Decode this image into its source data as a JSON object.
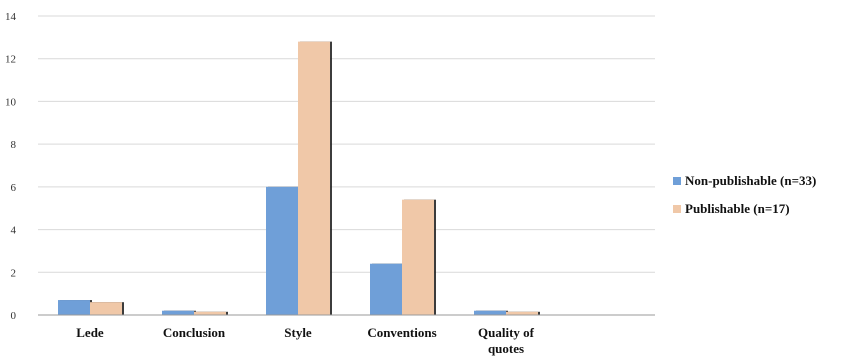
{
  "chart_data": {
    "type": "bar",
    "categories": [
      "Lede",
      "Conclusion",
      "Style",
      "Conventions",
      "Quality of quotes"
    ],
    "series": [
      {
        "name": "Non-publishable (n=33)",
        "color": "#6f9fd8",
        "values": [
          0.7,
          0.2,
          6.0,
          2.4,
          0.2
        ]
      },
      {
        "name": "Publishable (n=17)",
        "color": "#f0c8a8",
        "values": [
          0.6,
          0.15,
          12.8,
          5.4,
          0.15
        ]
      }
    ],
    "yticks": [
      0,
      2,
      4,
      6,
      8,
      10,
      12,
      14
    ],
    "ylim": [
      0,
      14
    ],
    "grid": true,
    "legend_position": "right"
  }
}
